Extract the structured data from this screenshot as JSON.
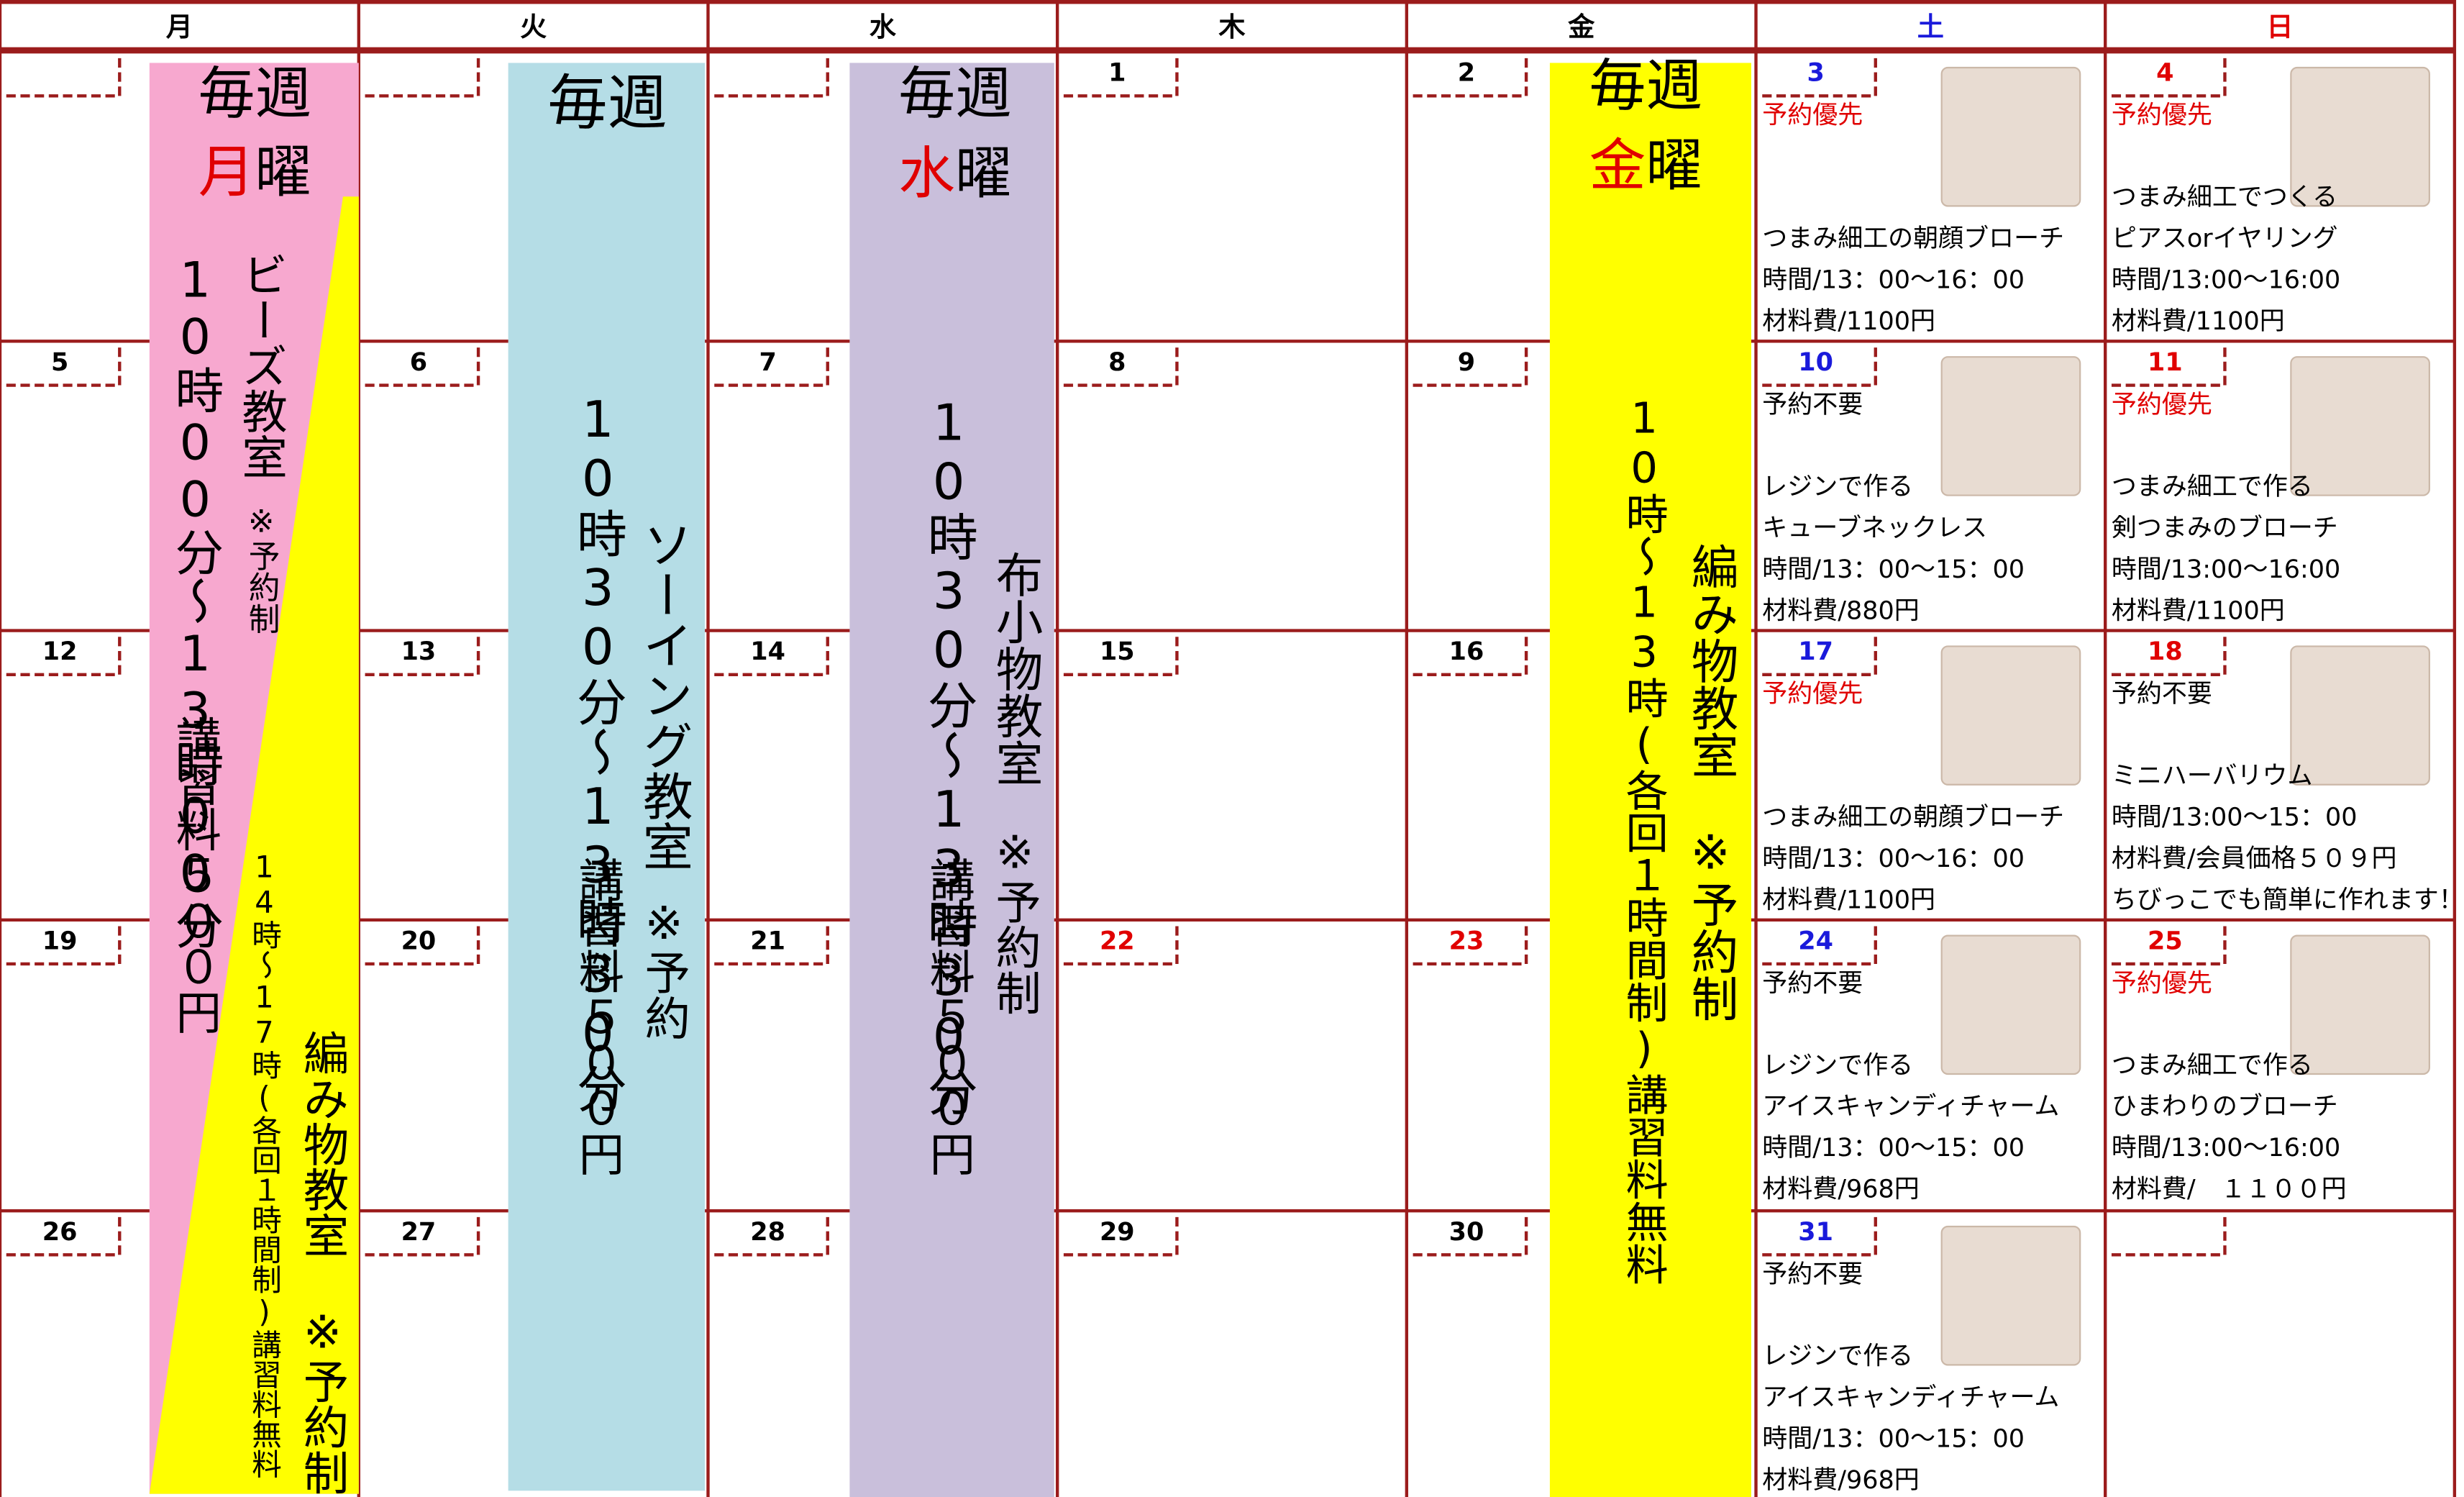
{
  "header": {
    "days": [
      "月",
      "火",
      "水",
      "木",
      "金",
      "土",
      "日"
    ],
    "colors": [
      "#000000",
      "#000000",
      "#000000",
      "#000000",
      "#000000",
      "#1a1adb",
      "#e00000"
    ]
  },
  "weeks": [
    [
      {
        "date": null
      },
      {
        "date": null
      },
      {
        "date": null
      },
      {
        "date": 1,
        "color": "#000000"
      },
      {
        "date": 2,
        "color": "#000000"
      },
      {
        "date": 3,
        "color": "#1a1adb",
        "event": {
          "note": "予約優先",
          "note_color": "#e00000",
          "lines": [
            "つまみ細工の朝顔ブローチ",
            "時間/13：00～16：00",
            "材料費/1100円"
          ]
        }
      },
      {
        "date": 4,
        "color": "#e00000",
        "event": {
          "note": "予約優先",
          "note_color": "#e00000",
          "lines": [
            "つまみ細工でつくる",
            "ピアスorイヤリング",
            "時間/13:00～16:00",
            "材料費/1100円"
          ]
        }
      }
    ],
    [
      {
        "date": 5,
        "color": "#000000"
      },
      {
        "date": 6,
        "color": "#000000"
      },
      {
        "date": 7,
        "color": "#000000"
      },
      {
        "date": 8,
        "color": "#000000"
      },
      {
        "date": 9,
        "color": "#000000"
      },
      {
        "date": 10,
        "color": "#1a1adb",
        "event": {
          "note": "予約不要",
          "note_color": "#000000",
          "lines": [
            "レジンで作る",
            "キューブネックレス",
            "時間/13：00～15：00",
            "材料費/880円"
          ]
        }
      },
      {
        "date": 11,
        "color": "#e00000",
        "event": {
          "note": "予約優先",
          "note_color": "#e00000",
          "lines": [
            "つまみ細工で作る",
            "剣つまみのブローチ",
            "時間/13:00～16:00",
            "材料費/1100円"
          ]
        }
      }
    ],
    [
      {
        "date": 12,
        "color": "#000000"
      },
      {
        "date": 13,
        "color": "#000000"
      },
      {
        "date": 14,
        "color": "#000000"
      },
      {
        "date": 15,
        "color": "#000000"
      },
      {
        "date": 16,
        "color": "#000000"
      },
      {
        "date": 17,
        "color": "#1a1adb",
        "event": {
          "note": "予約優先",
          "note_color": "#e00000",
          "lines": [
            "つまみ細工の朝顔ブローチ",
            "時間/13：00～16：00",
            "材料費/1100円"
          ]
        }
      },
      {
        "date": 18,
        "color": "#e00000",
        "event": {
          "note": "予約不要",
          "note_color": "#000000",
          "lines": [
            "ミニハーバリウム",
            "時間/13:00～15：00",
            "材料費/会員価格５０９円",
            "ちびっこでも簡単に作れます！"
          ]
        }
      }
    ],
    [
      {
        "date": 19,
        "color": "#000000"
      },
      {
        "date": 20,
        "color": "#000000"
      },
      {
        "date": 21,
        "color": "#000000"
      },
      {
        "date": 22,
        "color": "#e00000"
      },
      {
        "date": 23,
        "color": "#e00000"
      },
      {
        "date": 24,
        "color": "#1a1adb",
        "event": {
          "note": "予約不要",
          "note_color": "#000000",
          "lines": [
            "レジンで作る",
            "アイスキャンディチャーム",
            "時間/13：00～15：00",
            "材料費/968円"
          ]
        }
      },
      {
        "date": 25,
        "color": "#e00000",
        "event": {
          "note": "予約優先",
          "note_color": "#e00000",
          "lines": [
            "つまみ細工で作る",
            "ひまわりのブローチ",
            "時間/13:00～16:00",
            "材料費/　１１００円"
          ]
        }
      }
    ],
    [
      {
        "date": 26,
        "color": "#000000"
      },
      {
        "date": 27,
        "color": "#000000"
      },
      {
        "date": 28,
        "color": "#000000"
      },
      {
        "date": 29,
        "color": "#000000"
      },
      {
        "date": 30,
        "color": "#000000"
      },
      {
        "date": 31,
        "color": "#1a1adb",
        "event": {
          "note": "予約不要",
          "note_color": "#000000",
          "lines": [
            "レジンで作る",
            "アイスキャンディチャーム",
            "時間/13：00～15：00",
            "材料費/968円"
          ]
        }
      },
      {
        "date": null
      }
    ]
  ],
  "monday": {
    "weekly": "毎週",
    "kanji": "月",
    "yobi": "曜",
    "time": "10時00分～13時00分",
    "name": "ビーズ教室",
    "reserve": "※予約制",
    "fee": "講習料５００円",
    "time2": "14時～17時(各回１時間制)講習料無料",
    "name2": "編み物教室",
    "reserve2": "※予約制"
  },
  "tuesday": {
    "weekly": "毎週",
    "time": "10時30分～13時30分",
    "name": "ソーイング教室",
    "fee": "講習料５００円",
    "reserve": "※予約"
  },
  "wednesday": {
    "weekly": "毎週",
    "kanji": "水",
    "yobi": "曜",
    "time": "10時30分～13時30分",
    "name": "布小物教室",
    "fee": "講習料５００円",
    "reserve": "※予約制"
  },
  "friday": {
    "weekly": "毎週",
    "kanji": "金",
    "yobi": "曜",
    "time": "10時～13時(各回１時間制)講習料無料",
    "name": "編み物教室",
    "reserve": "※予約制"
  }
}
